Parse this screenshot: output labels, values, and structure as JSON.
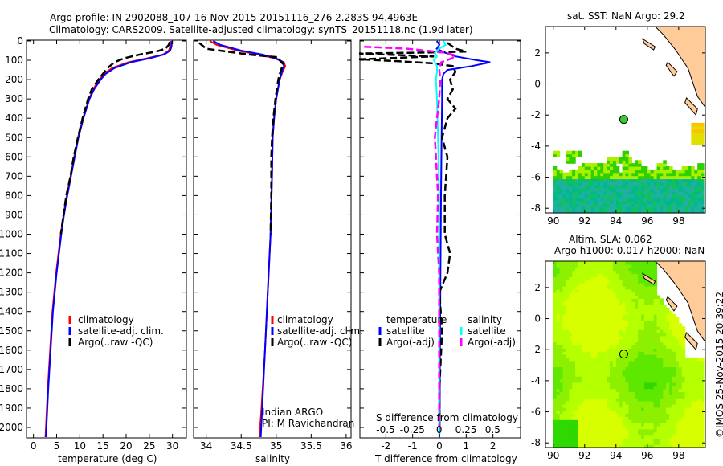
{
  "title_line1": "Argo profile: IN 2902088_107 16-Nov-2015 20151116_276 2.283S 94.4963E",
  "title_line2": "Climatology: CARS2009. Satellite-adjusted climatology: synTS_20151118.nc (1.9d later)",
  "chart_data": [
    {
      "type": "line",
      "name": "temperature-profile",
      "xlabel": "temperature (deg C)",
      "ylabel": "",
      "xlim": [
        -1.5,
        33
      ],
      "ylim": [
        2050,
        0
      ],
      "xticks": [
        0,
        5,
        10,
        15,
        20,
        25,
        30
      ],
      "yticks": [
        0,
        100,
        200,
        300,
        400,
        500,
        600,
        700,
        800,
        900,
        1000,
        1100,
        1200,
        1300,
        1400,
        1500,
        1600,
        1700,
        1800,
        1900,
        2000
      ],
      "legend": [
        "climatology",
        "satellite-adj. clim.",
        "Argo(..raw -QC)"
      ],
      "series": [
        {
          "name": "climatology",
          "color": "#ff0000",
          "depth": [
            0,
            30,
            50,
            70,
            90,
            110,
            140,
            170,
            200,
            250,
            300,
            400,
            500,
            600,
            700,
            800,
            900,
            1000,
            1200,
            1400,
            1600,
            1800,
            2000,
            2050
          ],
          "values": [
            29.6,
            29.5,
            29.2,
            28.0,
            24.5,
            20.5,
            17.0,
            15.2,
            14.2,
            12.9,
            12.0,
            10.7,
            9.6,
            8.8,
            8.0,
            7.2,
            6.5,
            5.9,
            4.9,
            4.1,
            3.6,
            3.1,
            2.7,
            2.6
          ]
        },
        {
          "name": "satellite-adj. clim.",
          "color": "#0000ff",
          "depth": [
            0,
            30,
            50,
            70,
            90,
            110,
            140,
            170,
            200,
            250,
            300,
            400,
            500,
            600,
            700,
            800,
            900,
            1000,
            1200,
            1400,
            1600,
            1800,
            2000,
            2050
          ],
          "values": [
            29.9,
            29.8,
            29.5,
            28.2,
            25.0,
            21.0,
            17.5,
            15.6,
            14.5,
            13.1,
            12.1,
            10.8,
            9.7,
            8.9,
            8.1,
            7.3,
            6.6,
            6.0,
            5.0,
            4.2,
            3.7,
            3.2,
            2.8,
            2.7
          ]
        },
        {
          "name": "Argo(..raw -QC)",
          "color": "#000000",
          "dashed": true,
          "depth": [
            5,
            20,
            40,
            55,
            70,
            90,
            110,
            140,
            170,
            200,
            250,
            300,
            400,
            500,
            600,
            700,
            800,
            900,
            1000
          ],
          "values": [
            29.4,
            29.2,
            28.5,
            26.5,
            23.0,
            19.5,
            17.5,
            16.0,
            15.0,
            14.0,
            12.6,
            11.8,
            10.6,
            9.6,
            8.7,
            8.0,
            7.1,
            6.5,
            5.9
          ]
        }
      ]
    },
    {
      "type": "line",
      "name": "salinity-profile",
      "xlabel": "salinity",
      "xlim": [
        33.82,
        36.07
      ],
      "ylim": [
        2050,
        0
      ],
      "xticks": [
        34,
        34.5,
        35,
        35.5,
        36
      ],
      "legend": [
        "climatology",
        "satellite-adj. clim.",
        "Argo(..raw -QC)"
      ],
      "annotation": [
        "Indian ARGO",
        "PI: M Ravichandran"
      ],
      "series": [
        {
          "name": "climatology",
          "color": "#ff0000",
          "depth": [
            0,
            20,
            50,
            70,
            90,
            110,
            130,
            160,
            200,
            300,
            400,
            500,
            700,
            1000,
            1300,
            1600,
            1900,
            2050
          ],
          "values": [
            34.05,
            34.15,
            34.45,
            34.75,
            34.98,
            35.11,
            35.13,
            35.09,
            35.05,
            35.0,
            34.97,
            34.95,
            34.94,
            34.92,
            34.88,
            34.84,
            34.79,
            34.76
          ]
        },
        {
          "name": "satellite-adj. clim.",
          "color": "#0000ff",
          "depth": [
            0,
            20,
            50,
            70,
            90,
            110,
            130,
            160,
            200,
            300,
            400,
            500,
            700,
            1000,
            1300,
            1600,
            1900,
            2050
          ],
          "values": [
            34.1,
            34.2,
            34.5,
            34.8,
            35.0,
            35.1,
            35.11,
            35.08,
            35.05,
            35.0,
            34.97,
            34.95,
            34.94,
            34.92,
            34.88,
            34.84,
            34.8,
            34.78
          ]
        },
        {
          "name": "Argo(..raw -QC)",
          "color": "#000000",
          "dashed": true,
          "depth": [
            10,
            40,
            55,
            70,
            85,
            100,
            120,
            160,
            200,
            300,
            400,
            500,
            600,
            800,
            1000
          ],
          "values": [
            33.9,
            34.0,
            34.3,
            34.6,
            35.04,
            35.05,
            35.1,
            35.06,
            35.03,
            34.99,
            34.96,
            34.94,
            34.93,
            34.93,
            34.92
          ]
        }
      ]
    },
    {
      "type": "line",
      "name": "difference-profile",
      "xlabel": "T difference from climatology",
      "x2label": "S difference from climatology",
      "xlim": [
        -2.97,
        3.03
      ],
      "x2lim": [
        -0.74,
        0.76
      ],
      "ylim": [
        2050,
        0
      ],
      "xticks": [
        -2,
        -1,
        0,
        1,
        2
      ],
      "x2ticks": [
        -0.5,
        -0.25,
        0,
        0.25,
        0.5
      ],
      "x2ticklabels": [
        "-0.5",
        "-0.25",
        "0",
        "0.25",
        "0.5"
      ],
      "legend_temperature_title": "temperature",
      "legend_salinity_title": "salinity",
      "legend": [
        "satellite",
        "Argo(-adj)",
        "satellite",
        "Argo(-adj)"
      ],
      "series": [
        {
          "name": "T satellite",
          "axis": "T",
          "color": "#0000ff",
          "depth": [
            0,
            20,
            40,
            60,
            80,
            100,
            110,
            130,
            150,
            170,
            200,
            300,
            500,
            800,
            1200,
            1600,
            2000,
            2050
          ],
          "values": [
            -0.1,
            0.0,
            -0.1,
            0.2,
            0.6,
            1.4,
            1.9,
            1.2,
            0.3,
            0.15,
            0.1,
            0.1,
            0.08,
            0.06,
            0.04,
            0.02,
            0.01,
            0.0
          ]
        },
        {
          "name": "T Argo(-adj)",
          "axis": "T",
          "color": "#000000",
          "dashed": true,
          "depth": [
            10,
            40,
            55,
            60,
            65,
            80,
            95,
            105,
            115,
            130,
            160,
            200,
            250,
            300,
            350,
            400,
            500,
            600,
            800,
            1000,
            1100,
            1200,
            1300,
            1500,
            1800,
            2000
          ],
          "values": [
            0.3,
            0.6,
            1.0,
            -0.5,
            -3.0,
            -0.2,
            -3.0,
            -1.5,
            -0.3,
            0.5,
            0.6,
            0.4,
            0.5,
            0.3,
            0.6,
            0.3,
            0.1,
            0.3,
            0.2,
            0.2,
            0.4,
            0.3,
            0.0,
            0.1,
            0.0,
            0.0
          ]
        },
        {
          "name": "S satellite",
          "axis": "S",
          "color": "#00ffff",
          "depth": [
            0,
            20,
            40,
            60,
            80,
            100,
            130,
            160,
            200,
            300,
            500,
            800,
            1200,
            1600,
            2000,
            2050
          ],
          "values": [
            0.04,
            0.06,
            0.0,
            -0.04,
            -0.02,
            -0.05,
            -0.02,
            -0.02,
            -0.03,
            -0.02,
            -0.01,
            0.0,
            0.0,
            0.0,
            0.0,
            0.0
          ]
        },
        {
          "name": "S Argo(-adj)",
          "axis": "S",
          "color": "#ff00ff",
          "dashed": true,
          "depth": [
            30,
            40,
            60,
            75,
            90,
            110,
            140,
            200,
            300,
            400,
            500,
            600,
            800,
            1000,
            1200,
            1500,
            1800,
            2000
          ],
          "values": [
            -0.7,
            -0.3,
            0.05,
            0.15,
            0.12,
            0.02,
            0.0,
            0.01,
            0.0,
            -0.02,
            -0.04,
            -0.03,
            -0.01,
            -0.02,
            0.0,
            0.0,
            0.0,
            0.0
          ]
        }
      ]
    },
    {
      "type": "heatmap",
      "name": "sst-map",
      "title": "sat. SST: NaN Argo: 29.2",
      "xlim": [
        89.5,
        99.7
      ],
      "ylim": [
        -8.3,
        3.7
      ],
      "xticks": [
        90,
        92,
        94,
        96,
        98
      ],
      "yticks": [
        2,
        0,
        -2,
        -4,
        -6,
        -8
      ],
      "argo_position": [
        94.4963,
        -2.283
      ]
    },
    {
      "type": "heatmap",
      "name": "sla-map",
      "title": "Altim. SLA: 0.062",
      "subtitle": "Argo h1000: 0.017 h2000: NaN",
      "xlim": [
        89.5,
        99.7
      ],
      "ylim": [
        -8.3,
        3.7
      ],
      "xticks": [
        90,
        92,
        94,
        96,
        98
      ],
      "yticks": [
        2,
        0,
        -2,
        -4,
        -6,
        -8
      ],
      "argo_position": [
        94.4963,
        -2.283
      ]
    }
  ],
  "credit": "©IMOS 25-Nov-2015 20:39:22"
}
